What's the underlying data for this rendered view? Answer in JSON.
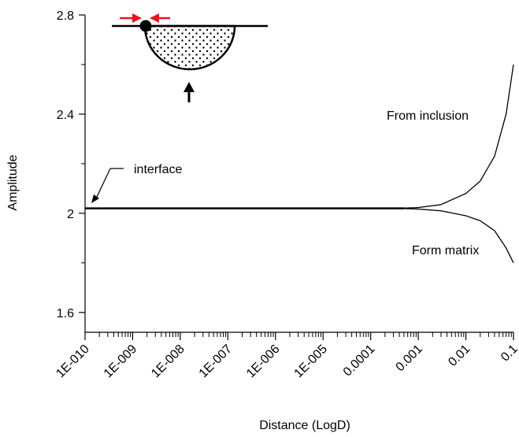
{
  "chart_data": {
    "type": "line",
    "xscale": "log10",
    "xlabel": "Distance (LogD)",
    "ylabel": "Amplitude",
    "xlim": [
      1e-10,
      0.1
    ],
    "ylim": [
      1.52,
      2.8
    ],
    "grid": false,
    "x_tick_labels": [
      "1E-010",
      "1E-009",
      "1E-008",
      "1E-007",
      "1E-006",
      "1E-005",
      "0.0001",
      "0.001",
      "0.01",
      "0.1"
    ],
    "y_tick_labels": [
      "1.6",
      "2",
      "2.4",
      "2.8"
    ],
    "series": [
      {
        "name": "From inclusion",
        "x": [
          1e-10,
          1e-05,
          0.0001,
          0.0005,
          0.001,
          0.003,
          0.01,
          0.02,
          0.04,
          0.07,
          0.1
        ],
        "y": [
          2.02,
          2.02,
          2.02,
          2.021,
          2.023,
          2.035,
          2.08,
          2.13,
          2.23,
          2.4,
          2.6
        ]
      },
      {
        "name": "Form matrix",
        "x": [
          1e-10,
          1e-05,
          0.0001,
          0.0005,
          0.001,
          0.003,
          0.01,
          0.02,
          0.04,
          0.07,
          0.1
        ],
        "y": [
          2.02,
          2.02,
          2.02,
          2.019,
          2.017,
          2.01,
          1.99,
          1.97,
          1.93,
          1.86,
          1.8
        ]
      }
    ],
    "annotations": [
      {
        "text": "interface"
      },
      {
        "text": "From inclusion"
      },
      {
        "text": "Form matrix"
      }
    ],
    "colors": {
      "line": "#000000",
      "arrow_red": "#e8141c"
    }
  }
}
